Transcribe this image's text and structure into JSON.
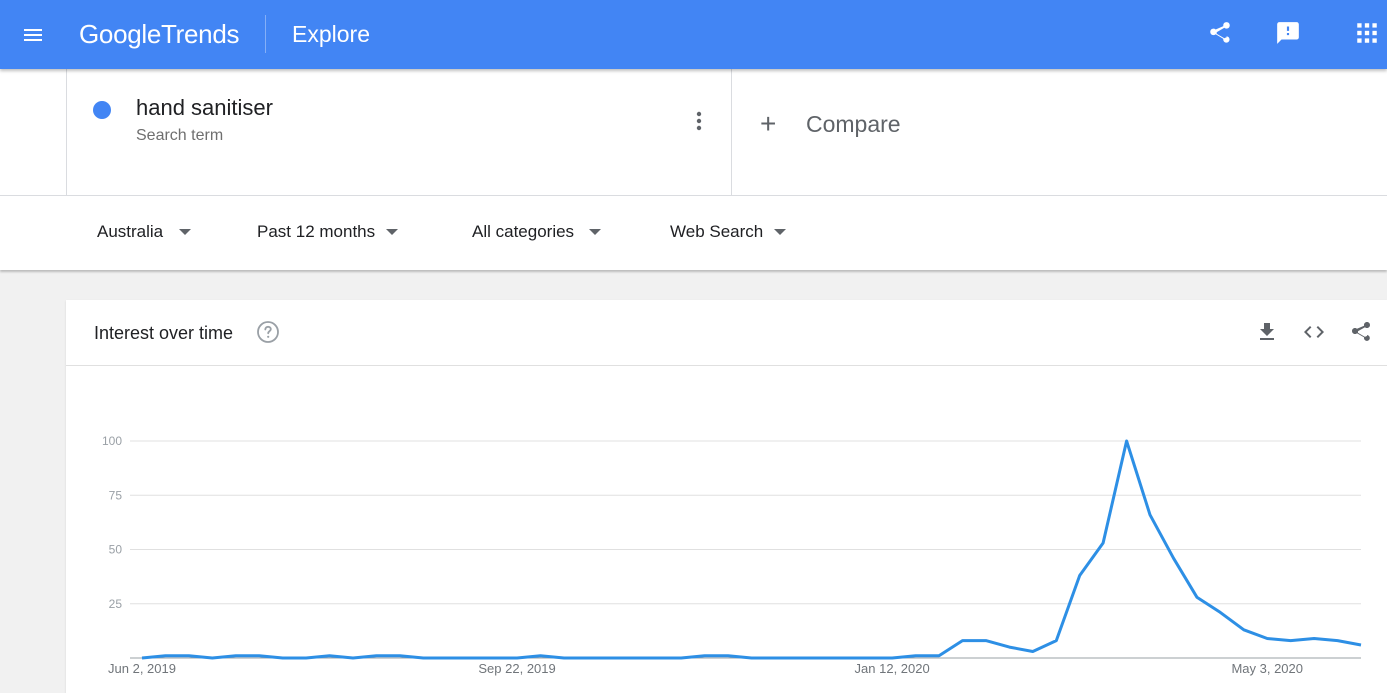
{
  "header": {
    "logo_google": "Google",
    "logo_trends": "Trends",
    "section_title": "Explore",
    "icons": [
      "menu-icon",
      "share-icon",
      "feedback-icon",
      "apps-icon"
    ],
    "bar_color": "#4285f4"
  },
  "term": {
    "name": "hand sanitiser",
    "type": "Search term",
    "dot_color": "#4285f4",
    "compare_label": "Compare"
  },
  "filters": {
    "region": "Australia",
    "time": "Past 12 months",
    "category": "All categories",
    "property": "Web Search"
  },
  "card": {
    "title": "Interest over time",
    "icons": [
      "help-icon",
      "download-icon",
      "embed-icon",
      "share-icon"
    ]
  },
  "chart_data": {
    "type": "line",
    "title": "",
    "xlabel": "",
    "ylabel": "",
    "ylim": [
      0,
      100
    ],
    "yticks": [
      "100",
      "75",
      "50",
      "25"
    ],
    "xticks": [
      {
        "index": 0,
        "label": "Jun 2, 2019"
      },
      {
        "index": 16,
        "label": "Sep 22, 2019"
      },
      {
        "index": 32,
        "label": "Jan 12, 2020"
      },
      {
        "index": 48,
        "label": "May 3, 2020"
      }
    ],
    "grid": true,
    "line_color": "#2d8fe5",
    "series": [
      {
        "values": [
          0,
          1,
          1,
          0,
          1,
          1,
          0,
          0,
          1,
          0,
          1,
          1,
          0,
          0,
          0,
          0,
          0,
          1,
          0,
          0,
          0,
          0,
          0,
          0,
          1,
          1,
          0,
          0,
          0,
          0,
          0,
          0,
          0,
          1,
          1,
          8,
          8,
          5,
          3,
          8,
          38,
          53,
          100,
          66,
          46,
          28,
          21,
          13,
          9,
          8,
          9,
          8,
          6
        ]
      }
    ]
  }
}
